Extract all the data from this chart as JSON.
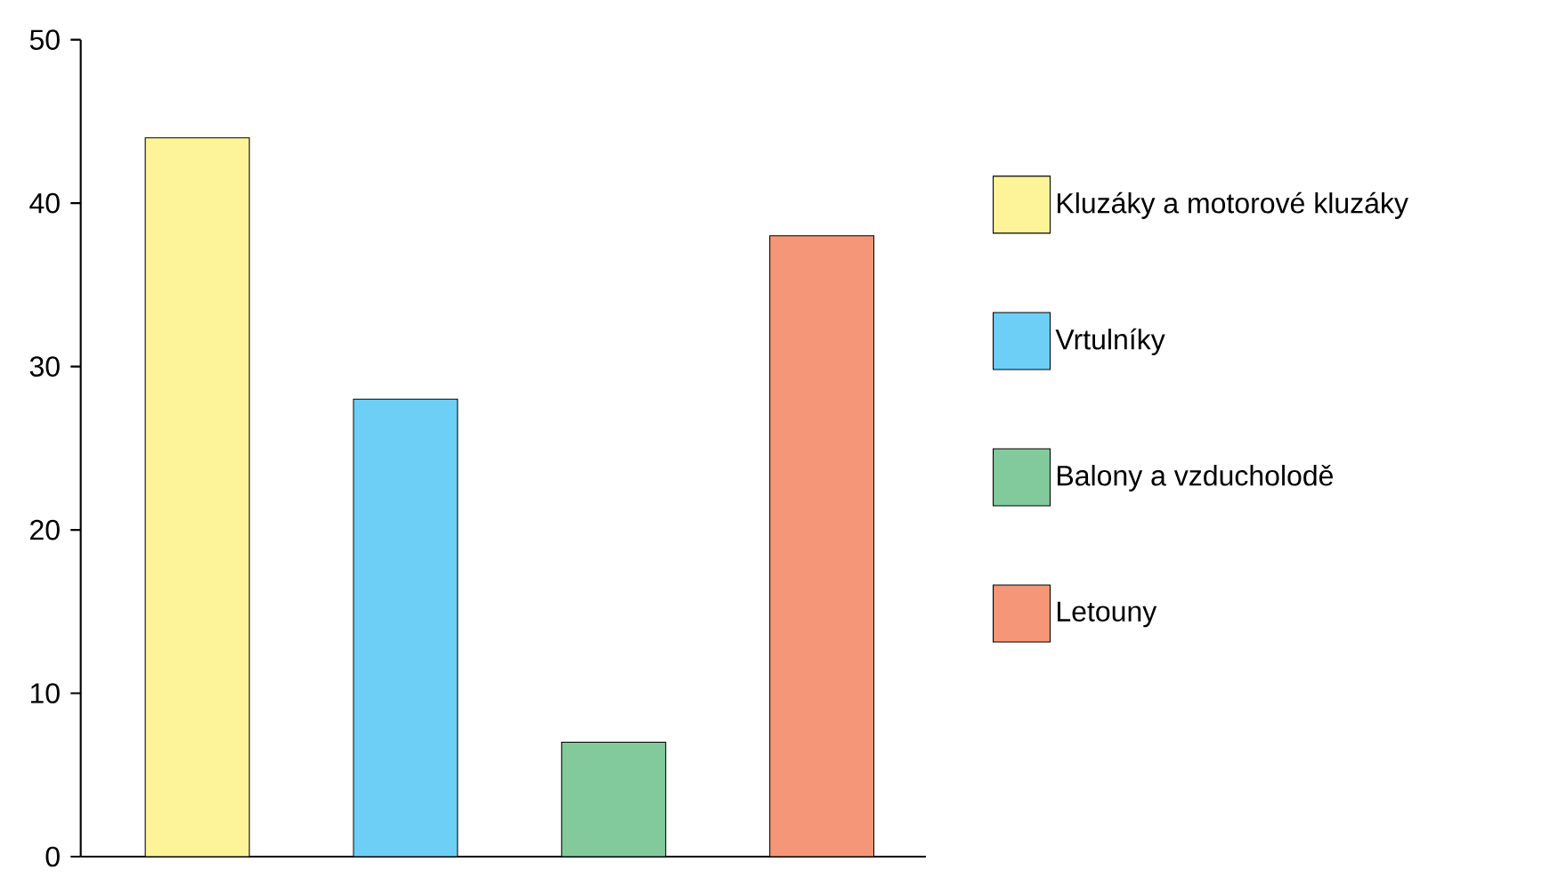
{
  "chart_data": {
    "type": "bar",
    "categories": [
      null,
      null,
      null,
      null
    ],
    "series": [
      {
        "name": "Kluzáky a motorové kluzáky",
        "color": "#fdf49a",
        "values": [
          44,
          null,
          null,
          null
        ]
      },
      {
        "name": "Vrtulníky",
        "color": "#6dcff6",
        "values": [
          null,
          28,
          null,
          null
        ]
      },
      {
        "name": "Balony a vzducholodě",
        "color": "#82ca9c",
        "values": [
          null,
          null,
          7,
          null
        ]
      },
      {
        "name": "Letouny",
        "color": "#f49677",
        "values": [
          null,
          null,
          null,
          38
        ]
      }
    ],
    "ylim": [
      0,
      50
    ],
    "yticks": [
      0,
      10,
      20,
      30,
      40,
      50
    ],
    "legend": "right"
  }
}
